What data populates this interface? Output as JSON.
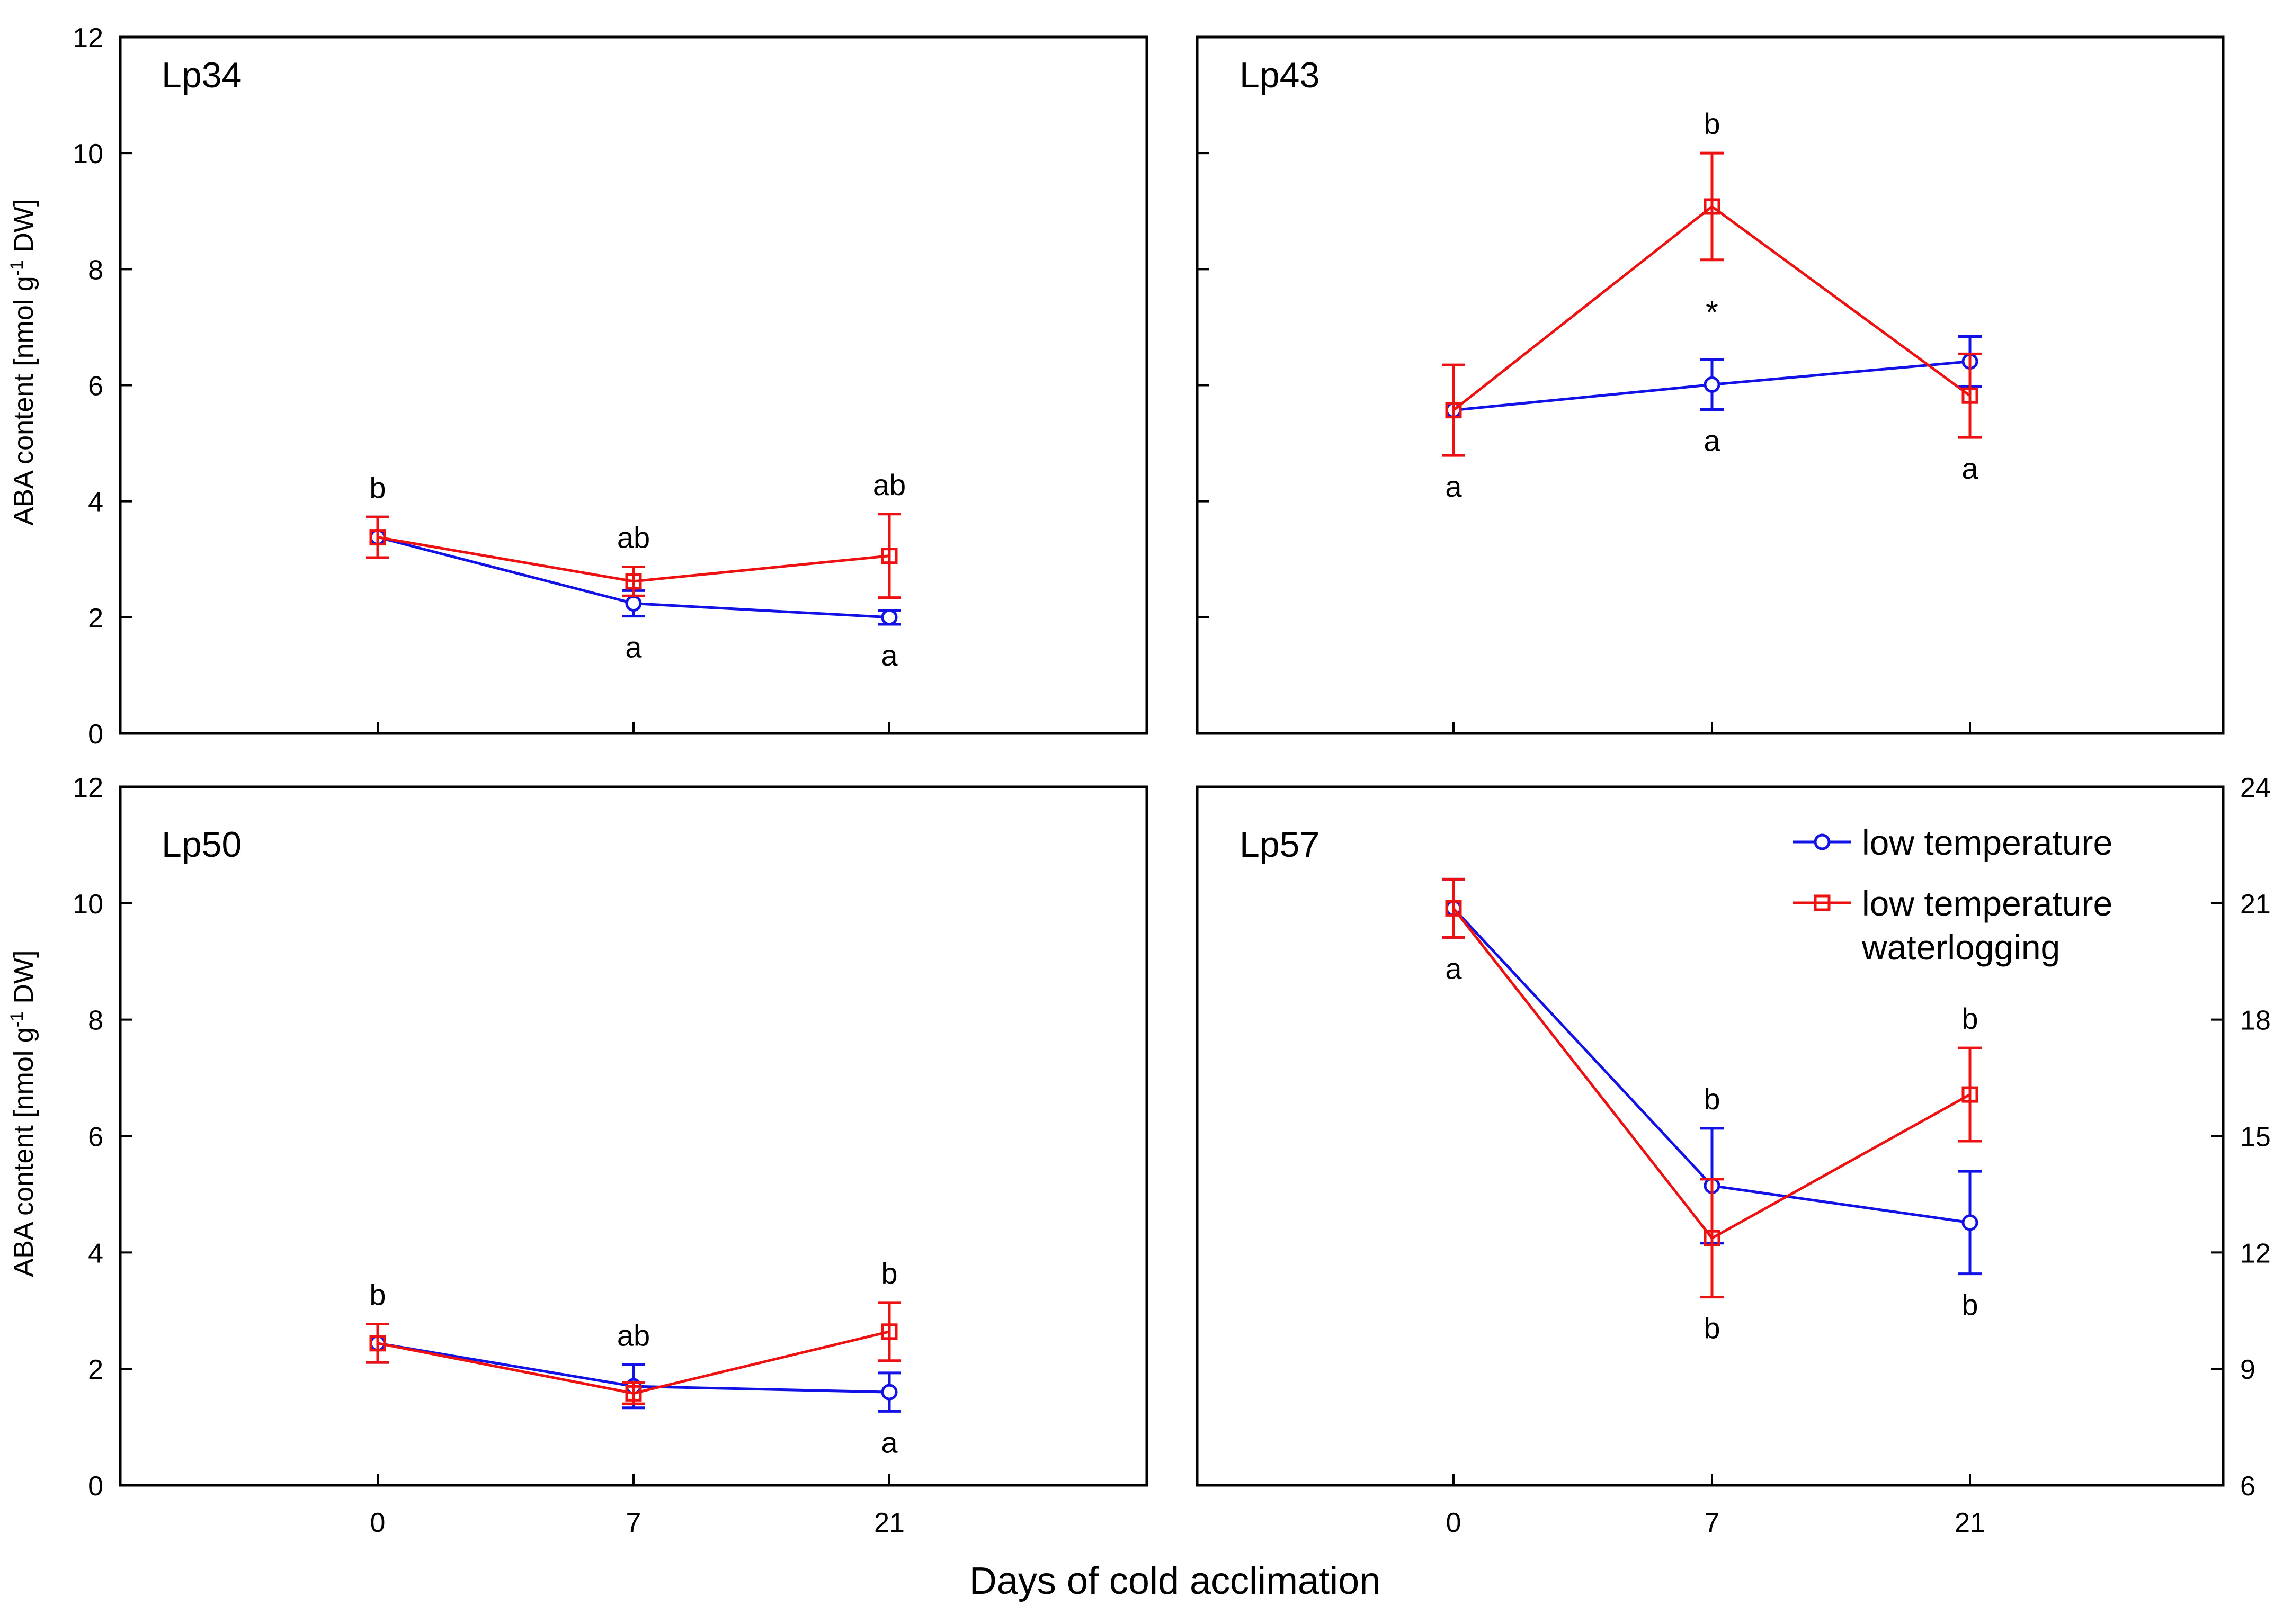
{
  "figure": {
    "xlabel": "Days of cold acclimation",
    "ylabel_left_top": "ABA content [nmol g",
    "ylabel_left_sup": "-1",
    "ylabel_left_tail": " DW]",
    "x_tick_labels": [
      "0",
      "7",
      "21"
    ],
    "legend": {
      "entries": [
        {
          "label_lines": [
            "low temperature"
          ],
          "color": "#1212e6",
          "marker": "circle"
        },
        {
          "label_lines": [
            "low temperature",
            "waterlogging"
          ],
          "color": "#ee1111",
          "marker": "square"
        }
      ]
    },
    "colors": {
      "low_temperature": "#1212e6",
      "waterlogging": "#ee1111",
      "axis": "#000000"
    }
  },
  "chart_data": [
    {
      "type": "line",
      "title": "Lp34",
      "x": [
        0,
        7,
        21
      ],
      "x_tick_labels": [
        "0",
        "7",
        "21"
      ],
      "ylim": [
        0,
        12
      ],
      "y_ticks": [
        0,
        2,
        4,
        6,
        8,
        10,
        12
      ],
      "y_tick_labels": [
        "0",
        "2",
        "4",
        "6",
        "8",
        "10",
        "12"
      ],
      "series": [
        {
          "name": "low temperature",
          "values": [
            3.38,
            2.24,
            2.0
          ],
          "errors": [
            0.35,
            0.22,
            0.12
          ]
        },
        {
          "name": "low temperature waterlogging",
          "values": [
            3.38,
            2.62,
            3.06
          ],
          "errors": [
            0.35,
            0.25,
            0.72
          ]
        }
      ],
      "annotations": [
        {
          "x": 0,
          "text": "b",
          "position": "above"
        },
        {
          "x": 7,
          "text": "ab",
          "position": "above"
        },
        {
          "x": 21,
          "text": "ab",
          "position": "above"
        },
        {
          "x": 7,
          "text": "a",
          "position": "below"
        },
        {
          "x": 21,
          "text": "a",
          "position": "below"
        }
      ]
    },
    {
      "type": "line",
      "title": "Lp43",
      "x": [
        0,
        7,
        21
      ],
      "x_tick_labels": [
        "0",
        "7",
        "21"
      ],
      "ylim": [
        0,
        12
      ],
      "y_ticks": [
        0,
        2,
        4,
        6,
        8,
        10,
        12
      ],
      "y_tick_labels": [
        "0",
        "2",
        "4",
        "6",
        "8",
        "10",
        "12"
      ],
      "series": [
        {
          "name": "low temperature",
          "values": [
            5.57,
            6.01,
            6.41
          ],
          "errors": [
            0.0,
            0.43,
            0.43
          ]
        },
        {
          "name": "low temperature waterlogging",
          "values": [
            5.57,
            9.08,
            5.82
          ],
          "errors": [
            0.78,
            0.92,
            0.72
          ]
        }
      ],
      "annotations": [
        {
          "x": 7,
          "text": "b",
          "position": "above"
        },
        {
          "x": 7,
          "text": "*",
          "position": "middle"
        },
        {
          "x": 0,
          "text": "a",
          "position": "below"
        },
        {
          "x": 7,
          "text": "a",
          "position": "below"
        },
        {
          "x": 21,
          "text": "a",
          "position": "below"
        }
      ]
    },
    {
      "type": "line",
      "title": "Lp50",
      "x": [
        0,
        7,
        21
      ],
      "x_tick_labels": [
        "0",
        "7",
        "21"
      ],
      "ylim": [
        0,
        12
      ],
      "y_ticks": [
        0,
        2,
        4,
        6,
        8,
        10,
        12
      ],
      "y_tick_labels": [
        "0",
        "2",
        "4",
        "6",
        "8",
        "10",
        "12"
      ],
      "series": [
        {
          "name": "low temperature",
          "values": [
            2.44,
            1.7,
            1.6
          ],
          "errors": [
            0.33,
            0.37,
            0.33
          ]
        },
        {
          "name": "low temperature waterlogging",
          "values": [
            2.44,
            1.58,
            2.64
          ],
          "errors": [
            0.33,
            0.18,
            0.5
          ]
        }
      ],
      "annotations": [
        {
          "x": 0,
          "text": "b",
          "position": "above"
        },
        {
          "x": 7,
          "text": "ab",
          "position": "above"
        },
        {
          "x": 21,
          "text": "b",
          "position": "above"
        },
        {
          "x": 21,
          "text": "a",
          "position": "below"
        }
      ]
    },
    {
      "type": "line",
      "title": "Lp57",
      "x": [
        0,
        7,
        21
      ],
      "x_tick_labels": [
        "0",
        "7",
        "21"
      ],
      "ylim": [
        6,
        24
      ],
      "y_ticks": [
        6,
        9,
        12,
        15,
        18,
        21,
        24
      ],
      "y_tick_labels": [
        "6",
        "9",
        "12",
        "15",
        "18",
        "21",
        "24"
      ],
      "series": [
        {
          "name": "low temperature",
          "values": [
            20.87,
            13.72,
            12.77
          ],
          "errors": [
            0.75,
            1.48,
            1.32
          ]
        },
        {
          "name": "low temperature waterlogging",
          "values": [
            20.87,
            12.37,
            16.07
          ],
          "errors": [
            0.75,
            1.52,
            1.2
          ]
        }
      ],
      "annotations": [
        {
          "x": 0,
          "text": "a",
          "position": "below"
        },
        {
          "x": 7,
          "text": "b",
          "position": "above"
        },
        {
          "x": 21,
          "text": "b",
          "position": "above"
        },
        {
          "x": 7,
          "text": "b",
          "position": "below"
        },
        {
          "x": 21,
          "text": "b",
          "position": "below"
        }
      ]
    }
  ]
}
